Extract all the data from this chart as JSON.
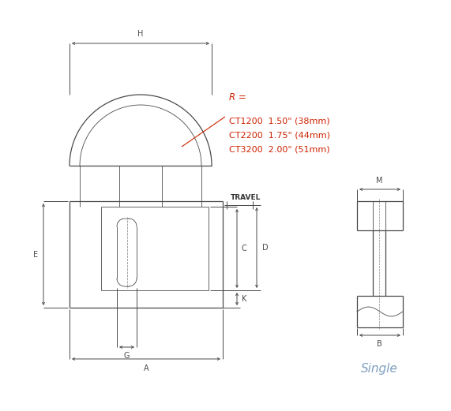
{
  "bg_color": "#ffffff",
  "line_color": "#4a4a4a",
  "dim_color": "#4a4a4a",
  "annotation_color": "#cc2200",
  "single_color": "#7fa0c0",
  "figsize": [
    5.71,
    5.21
  ],
  "dpi": 100,
  "r_lines": [
    {
      "model": "CT1200",
      "value": "1.50\" (38mm)"
    },
    {
      "model": "CT2200",
      "value": "1.75\" (44mm)"
    },
    {
      "model": "CT3200",
      "value": "2.00\" (51mm)"
    }
  ]
}
